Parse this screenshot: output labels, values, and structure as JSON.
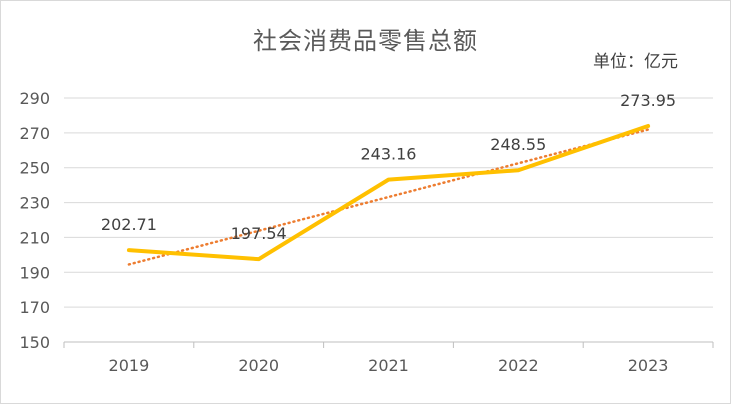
{
  "chart_data": {
    "type": "line",
    "title": "社会消费品零售总额",
    "unit": "单位：亿元",
    "categories": [
      "2019",
      "2020",
      "2021",
      "2022",
      "2023"
    ],
    "series": [
      {
        "values": [
          202.71,
          197.54,
          243.16,
          248.55,
          273.95
        ],
        "color": "#FFC000",
        "data_labels": [
          "202.71",
          "197.54",
          "243.16",
          "248.55",
          "273.95"
        ]
      }
    ],
    "trendline": {
      "type": "linear",
      "style": "dotted",
      "color": "#ED7D31"
    },
    "ylim": [
      150,
      290
    ],
    "yticks": [
      150,
      170,
      190,
      210,
      230,
      250,
      270,
      290
    ],
    "ytick_labels": [
      "150",
      "170",
      "190",
      "210",
      "230",
      "250",
      "270",
      "290"
    ],
    "grid": true,
    "legend": "none",
    "xlabel": "",
    "ylabel": ""
  }
}
